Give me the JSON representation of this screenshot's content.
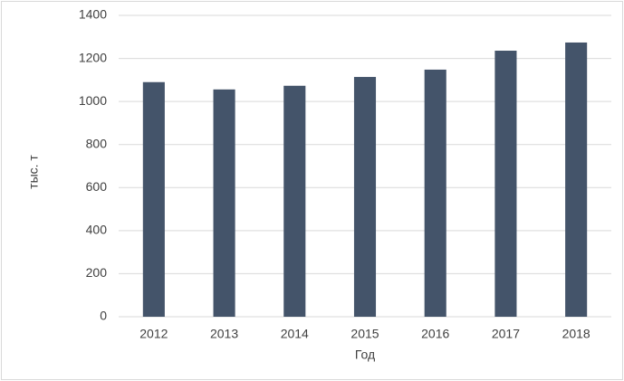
{
  "chart_data": {
    "type": "bar",
    "x_label": "Год",
    "y_label": "тыс. т",
    "categories": [
      "2012",
      "2013",
      "2014",
      "2015",
      "2016",
      "2017",
      "2018"
    ],
    "values": [
      1090,
      1056,
      1073,
      1114,
      1148,
      1236,
      1274
    ],
    "color": "#44546a",
    "ylim": [
      0,
      1400
    ],
    "yticks": [
      0,
      200,
      400,
      600,
      800,
      1000,
      1200,
      1400
    ],
    "grid": true
  }
}
